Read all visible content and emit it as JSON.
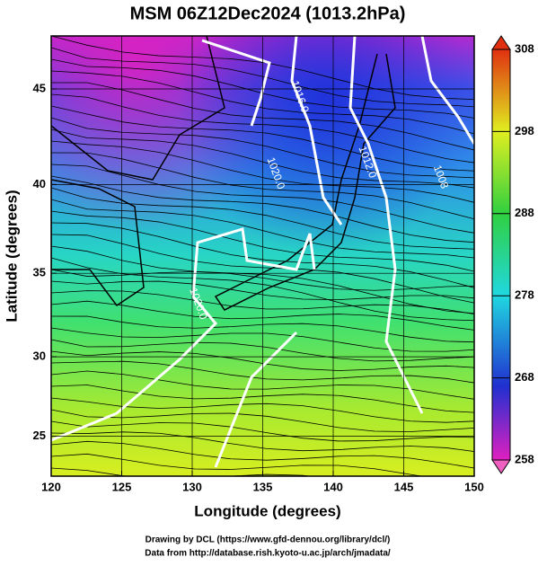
{
  "chart_data": {
    "type": "map",
    "title": "MSM 06Z12Dec2024 (1013.2hPa)",
    "xlabel": "Longitude (degrees)",
    "ylabel": "Latitude  (degrees)",
    "projection": "mercator",
    "xlim": [
      120,
      150
    ],
    "xticks": [
      120,
      125,
      130,
      135,
      140,
      145,
      150
    ],
    "ylim": [
      22.4,
      47.6
    ],
    "yticks": [
      25,
      30,
      35,
      40,
      45
    ],
    "grid": true,
    "colorbar": {
      "lim": [
        258,
        308
      ],
      "ticks": [
        258,
        268,
        278,
        288,
        298,
        308
      ]
    },
    "contour_labels": [
      {
        "text": "1016.0",
        "lon": 137.6,
        "lat": 44.6
      },
      {
        "text": "1020.0",
        "lon": 135.9,
        "lat": 40.6
      },
      {
        "text": "1012.0",
        "lon": 142.4,
        "lat": 41.2
      },
      {
        "text": "1008",
        "lon": 147.6,
        "lat": 40.4
      },
      {
        "text": "1020.0",
        "lon": 130.4,
        "lat": 33.2
      }
    ],
    "footer": [
      "Drawing by DCL (https://www.gfd-dennou.org/library/dcl/)",
      "Data from http://database.rish.kyoto-u.ac.jp/arch/jmadata/"
    ]
  }
}
